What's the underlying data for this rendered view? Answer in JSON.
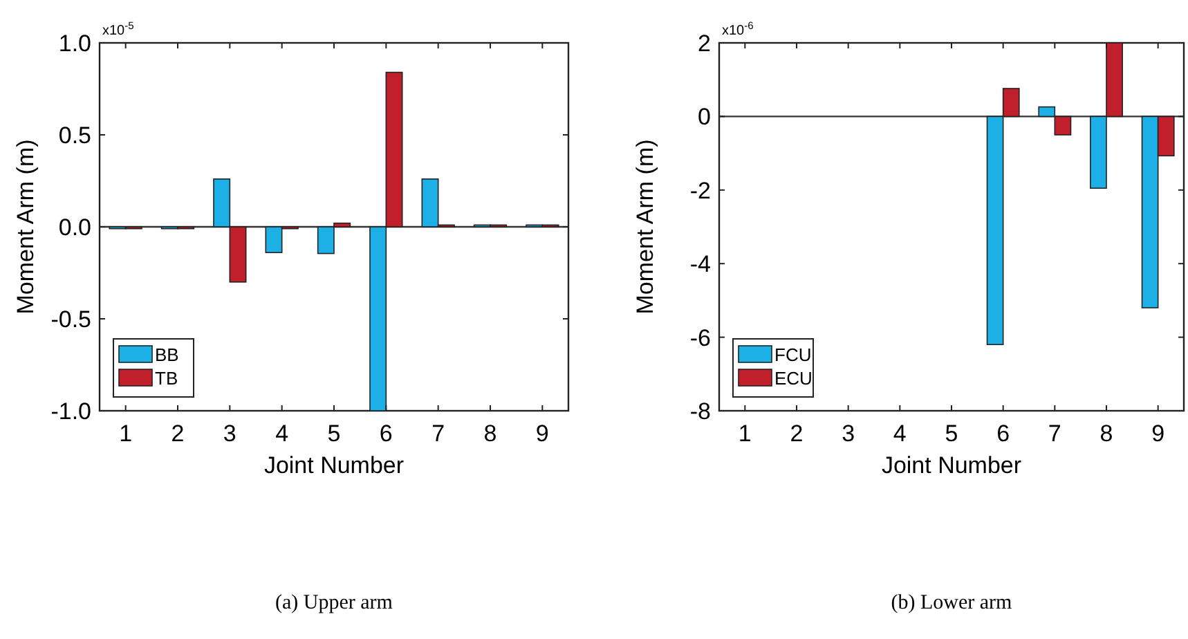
{
  "chart_data": [
    {
      "type": "bar",
      "xlabel": "Joint Number",
      "ylabel": "Moment Arm (m)",
      "categories": [
        "1",
        "2",
        "3",
        "4",
        "5",
        "6",
        "7",
        "8",
        "9"
      ],
      "series": [
        {
          "name": "BB",
          "color": "#1cb0e6",
          "values": [
            -0.01,
            -0.01,
            0.26,
            -0.14,
            -0.145,
            -1.0,
            0.26,
            0.01,
            0.01
          ]
        },
        {
          "name": "TB",
          "color": "#c01f2b",
          "values": [
            -0.01,
            -0.01,
            -0.3,
            -0.01,
            0.02,
            0.84,
            0.01,
            0.01,
            0.01
          ]
        }
      ],
      "ylim": [
        -1,
        1
      ],
      "yticks": [
        {
          "value": -1,
          "label": "-1.0"
        },
        {
          "value": -0.5,
          "label": "-0.5"
        },
        {
          "value": 0,
          "label": "0.0"
        },
        {
          "value": 0.5,
          "label": "0.5"
        },
        {
          "value": 1,
          "label": "1.0"
        }
      ],
      "ref_lines": [
        {
          "axis": "y",
          "value": 0
        }
      ],
      "legend": "bottom left",
      "grid": false,
      "annotations": [
        "x10$^{-5}$",
        "(a) Upper arm"
      ]
    },
    {
      "type": "bar",
      "xlabel": "Joint Number",
      "ylabel": "Moment Arm (m)",
      "categories": [
        "1",
        "2",
        "3",
        "4",
        "5",
        "6",
        "7",
        "8",
        "9"
      ],
      "series": [
        {
          "name": "FCU",
          "color": "#1cb0e6",
          "values": [
            0,
            0,
            0,
            0,
            0,
            -6.2,
            0.26,
            -1.95,
            -5.2
          ]
        },
        {
          "name": "ECU",
          "color": "#c01f2b",
          "values": [
            0,
            0,
            0,
            0,
            0,
            0.76,
            -0.5,
            2,
            -1.07
          ]
        }
      ],
      "ylim": [
        -8,
        2
      ],
      "yticks": [
        -8,
        -6,
        -4,
        -2,
        0,
        2
      ],
      "ref_lines": [
        {
          "axis": "y",
          "value": 0
        }
      ],
      "legend": "bottom left",
      "grid": false,
      "annotations": [
        "x10$^{-6}$",
        "(b) Lower arm"
      ]
    }
  ]
}
